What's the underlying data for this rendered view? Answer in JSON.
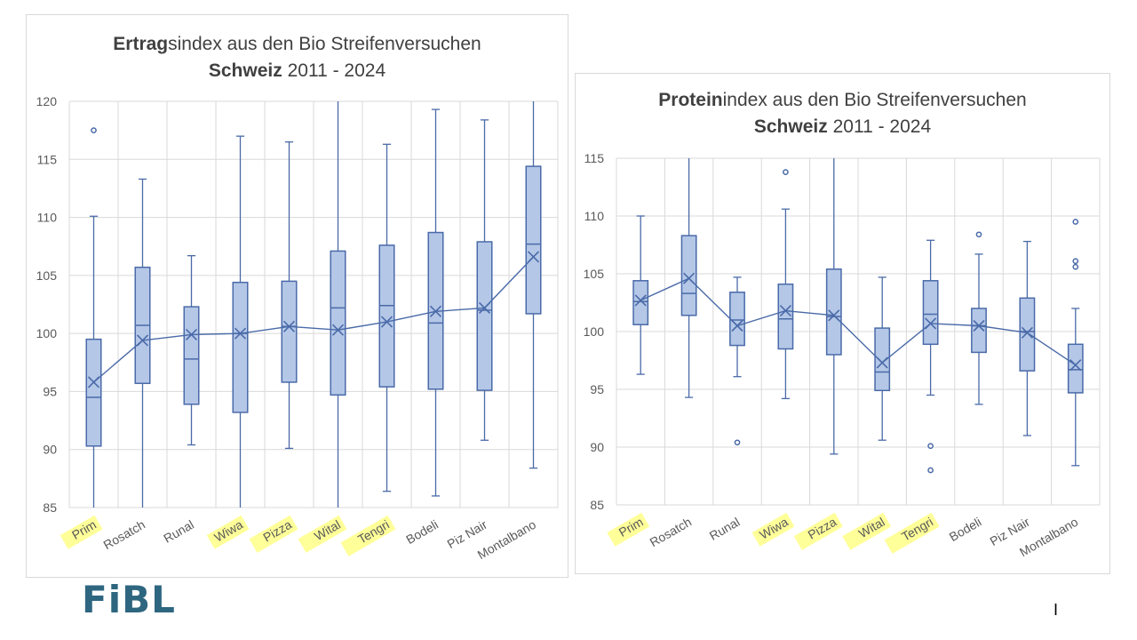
{
  "logo": "FiBL",
  "slide_mark": "I",
  "colors": {
    "box_fill": "#b4c7e7",
    "box_stroke": "#4a6aa8",
    "grid": "#d9d9d9",
    "axis_text": "#595959",
    "highlight": "#ffff99"
  },
  "highlighted_categories": [
    "Prim",
    "Wiwa",
    "Pizza",
    "Wital",
    "Tengri"
  ],
  "chart_data": [
    {
      "type": "box",
      "title_bold": "Ertrag",
      "title_rest": "sindex aus den Bio Streifenversuchen",
      "subtitle_bold": "Schweiz",
      "subtitle_rest": " 2011 - 2024",
      "ylim": [
        85,
        120
      ],
      "yticks": [
        85,
        90,
        95,
        100,
        105,
        110,
        115,
        120
      ],
      "grid": true,
      "categories": [
        "Prim",
        "Rosatch",
        "Runal",
        "Wiwa",
        "Pizza",
        "Wital",
        "Tengri",
        "Bodeli",
        "Piz Nair",
        "Montalbano"
      ],
      "boxes": [
        {
          "min": 85.0,
          "q1": 90.3,
          "median": 94.5,
          "q3": 99.5,
          "max": 110.1,
          "mean": 95.8,
          "outliers": [
            117.5
          ]
        },
        {
          "min": 85.0,
          "q1": 95.7,
          "median": 100.7,
          "q3": 105.7,
          "max": 113.3,
          "mean": 99.4,
          "outliers": []
        },
        {
          "min": 90.4,
          "q1": 93.9,
          "median": 97.8,
          "q3": 102.3,
          "max": 106.7,
          "mean": 99.9,
          "outliers": []
        },
        {
          "min": 85.0,
          "q1": 93.2,
          "median": 100.0,
          "q3": 104.4,
          "max": 117.0,
          "mean": 100.0,
          "outliers": []
        },
        {
          "min": 90.1,
          "q1": 95.8,
          "median": 100.6,
          "q3": 104.5,
          "max": 116.5,
          "mean": 100.6,
          "outliers": []
        },
        {
          "min": 85.0,
          "q1": 94.7,
          "median": 102.2,
          "q3": 107.1,
          "max": 120.0,
          "mean": 100.3,
          "outliers": []
        },
        {
          "min": 86.4,
          "q1": 95.4,
          "median": 102.4,
          "q3": 107.6,
          "max": 116.3,
          "mean": 101.0,
          "outliers": []
        },
        {
          "min": 86.0,
          "q1": 95.2,
          "median": 100.9,
          "q3": 108.7,
          "max": 119.3,
          "mean": 101.9,
          "outliers": []
        },
        {
          "min": 90.8,
          "q1": 95.1,
          "median": 102.0,
          "q3": 107.9,
          "max": 118.4,
          "mean": 102.2,
          "outliers": []
        },
        {
          "min": 88.4,
          "q1": 101.7,
          "median": 107.7,
          "q3": 114.4,
          "max": 120.0,
          "mean": 106.6,
          "outliers": []
        }
      ]
    },
    {
      "type": "box",
      "title_bold": "Protein",
      "title_rest": "index aus den Bio Streifenversuchen",
      "subtitle_bold": "Schweiz",
      "subtitle_rest": " 2011 - 2024",
      "ylim": [
        85,
        115
      ],
      "yticks": [
        85,
        90,
        95,
        100,
        105,
        110,
        115
      ],
      "grid": true,
      "categories": [
        "Prim",
        "Rosatch",
        "Runal",
        "Wiwa",
        "Pizza",
        "Wital",
        "Tengri",
        "Bodeli",
        "Piz Nair",
        "Montalbano"
      ],
      "boxes": [
        {
          "min": 96.3,
          "q1": 100.6,
          "median": 102.6,
          "q3": 104.4,
          "max": 110.0,
          "mean": 102.7,
          "outliers": []
        },
        {
          "min": 94.3,
          "q1": 101.4,
          "median": 103.3,
          "q3": 108.3,
          "max": 115.0,
          "mean": 104.6,
          "outliers": []
        },
        {
          "min": 96.1,
          "q1": 98.8,
          "median": 101.0,
          "q3": 103.4,
          "max": 104.7,
          "mean": 100.5,
          "outliers": [
            90.4
          ]
        },
        {
          "min": 94.2,
          "q1": 98.5,
          "median": 101.1,
          "q3": 104.1,
          "max": 110.6,
          "mean": 101.8,
          "outliers": [
            113.8
          ]
        },
        {
          "min": 89.4,
          "q1": 98.0,
          "median": 101.3,
          "q3": 105.4,
          "max": 115.0,
          "mean": 101.4,
          "outliers": []
        },
        {
          "min": 90.6,
          "q1": 94.9,
          "median": 96.5,
          "q3": 100.3,
          "max": 104.7,
          "mean": 97.3,
          "outliers": []
        },
        {
          "min": 94.5,
          "q1": 98.9,
          "median": 101.5,
          "q3": 104.4,
          "max": 107.9,
          "mean": 100.7,
          "outliers": [
            90.1,
            88.0
          ]
        },
        {
          "min": 93.7,
          "q1": 98.2,
          "median": 100.5,
          "q3": 102.0,
          "max": 106.7,
          "mean": 100.5,
          "outliers": [
            108.4
          ]
        },
        {
          "min": 91.0,
          "q1": 96.6,
          "median": 100.0,
          "q3": 102.9,
          "max": 107.8,
          "mean": 99.9,
          "outliers": []
        },
        {
          "min": 88.4,
          "q1": 94.7,
          "median": 96.7,
          "q3": 98.9,
          "max": 102.0,
          "mean": 97.1,
          "outliers": [
            105.6,
            106.1,
            109.5
          ]
        }
      ]
    }
  ]
}
